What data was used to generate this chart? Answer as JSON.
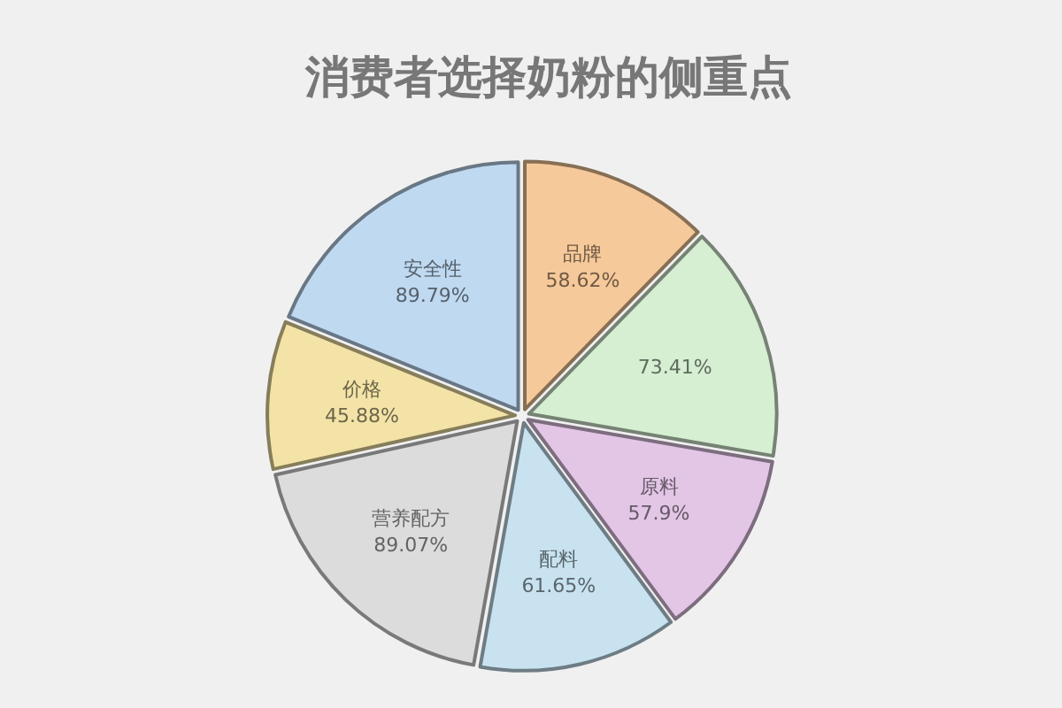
{
  "chart_data": {
    "type": "pie",
    "title": "消费者选择奶粉的侧重点",
    "categories": [
      "品牌",
      null,
      "原料",
      "配料",
      "营养配方",
      "价格",
      "安全性"
    ],
    "values": [
      58.62,
      73.41,
      57.9,
      61.65,
      89.07,
      45.88,
      89.79
    ],
    "value_labels": [
      "58.62%",
      "73.41%",
      "57.9%",
      "61.65%",
      "89.07%",
      "45.88%",
      "89.79%"
    ],
    "colors": [
      "#f6c99a",
      "#d6eed2",
      "#e3c6e6",
      "#c8e2f0",
      "#dcdcdc",
      "#f3e3a6",
      "#bfd9f1"
    ]
  }
}
